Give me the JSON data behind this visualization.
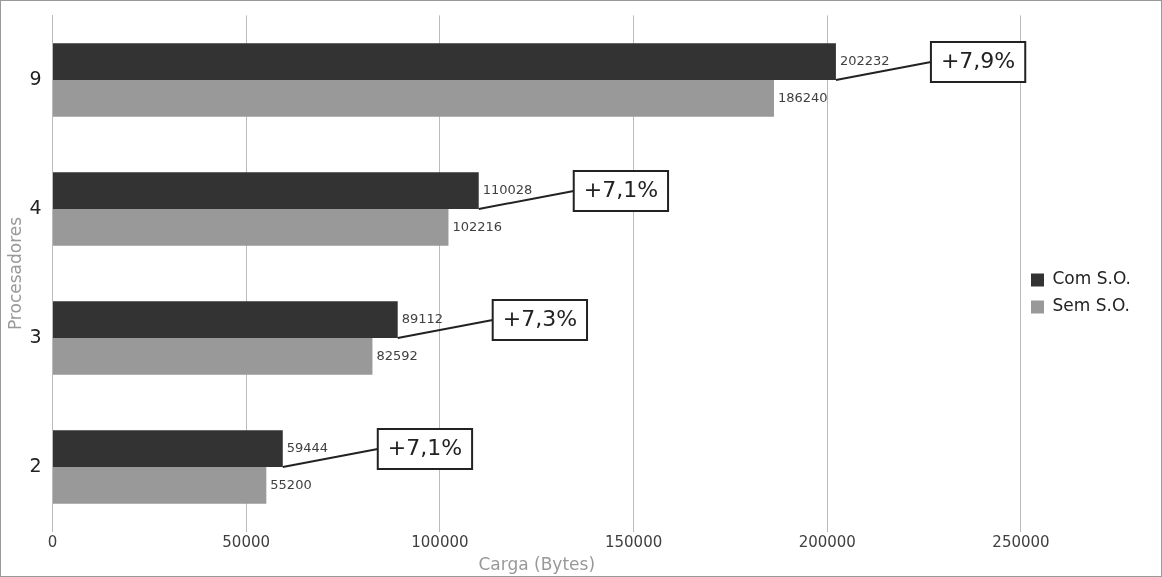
{
  "chart_data": {
    "type": "bar",
    "orientation": "horizontal",
    "xlabel": "Carga (Bytes)",
    "ylabel": "Procesadores",
    "categories": [
      "9",
      "4",
      "3",
      "2"
    ],
    "series": [
      {
        "name": "Com S.O.",
        "color": "#333333",
        "values": [
          202232,
          110028,
          89112,
          59444
        ]
      },
      {
        "name": "Sem S.O.",
        "color": "#999999",
        "values": [
          186240,
          102216,
          82592,
          55200
        ]
      }
    ],
    "xlim": [
      0,
      250000
    ],
    "xticks": [
      0,
      50000,
      100000,
      150000,
      200000,
      250000
    ],
    "grid": "x",
    "legend": "right",
    "data_labels": true,
    "annotations": [
      {
        "text": "+7,9%",
        "x": 202232,
        "y": "9"
      },
      {
        "text": "+7,1%",
        "x": 110028,
        "y": "4"
      },
      {
        "text": "+7,3%",
        "x": 89112,
        "y": "3"
      },
      {
        "text": "+7,1%",
        "x": 59444,
        "y": "2"
      }
    ]
  }
}
